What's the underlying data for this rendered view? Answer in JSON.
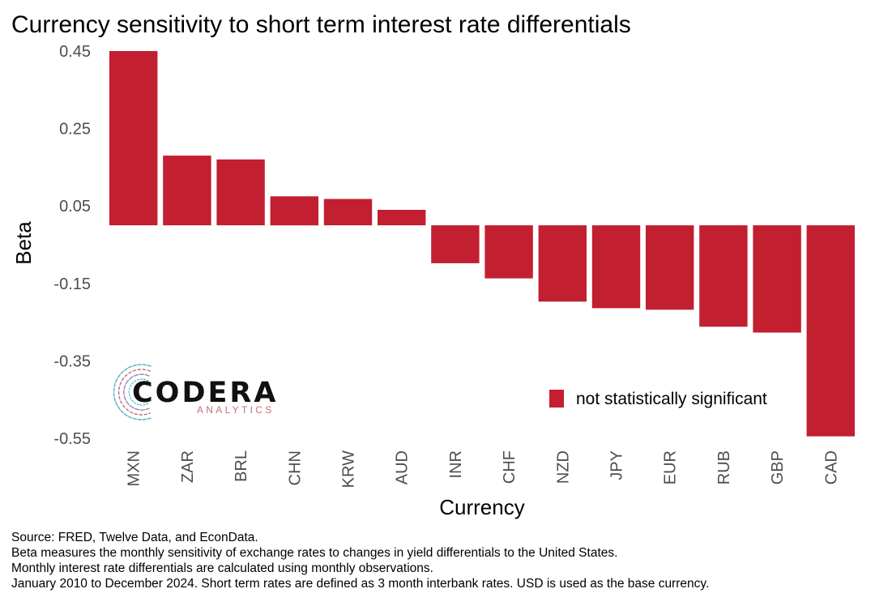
{
  "chart_data": {
    "type": "bar",
    "title": "Currency sensitivity to short term interest rate differentials",
    "xlabel": "Currency",
    "ylabel": "Beta",
    "categories": [
      "MXN",
      "ZAR",
      "BRL",
      "CHN",
      "KRW",
      "AUD",
      "INR",
      "CHF",
      "NZD",
      "JPY",
      "EUR",
      "RUB",
      "GBP",
      "CAD"
    ],
    "values": [
      0.45,
      0.18,
      0.17,
      0.075,
      0.068,
      0.04,
      -0.098,
      -0.137,
      -0.197,
      -0.214,
      -0.218,
      -0.262,
      -0.277,
      -0.545
    ],
    "ylim": [
      -0.55,
      0.45
    ],
    "yticks": [
      0.45,
      0.25,
      0.05,
      -0.15,
      -0.35,
      -0.55
    ],
    "ytick_labels": [
      "0.45",
      "0.25",
      "0.05",
      "-0.15",
      "-0.35",
      "-0.55"
    ],
    "grid": false,
    "legend": {
      "position": "bottom-right",
      "entries": [
        {
          "label": "not statistically significant",
          "color": "#c21f30"
        }
      ]
    },
    "bar_color": "#c21f30"
  },
  "logo": {
    "name": "CODERA",
    "sub": "ANALYTICS"
  },
  "captions": [
    "Source: FRED, Twelve Data, and EconData.",
    "Beta measures the monthly sensitivity of exchange rates to changes in yield differentials to the United States.",
    "Monthly interest rate differentials are calculated using monthly observations.",
    "January 2010 to December 2024. Short term rates are defined as 3 month interbank rates. USD is used as the base currency."
  ]
}
